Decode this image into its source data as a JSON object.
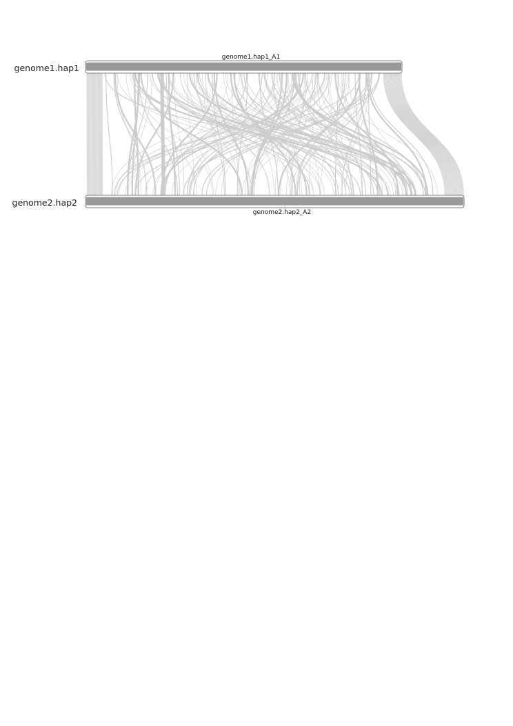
{
  "genomes": [
    {
      "name": "genome1.hap1",
      "chromosome": "genome1.hap1_A1"
    },
    {
      "name": "genome2.hap2",
      "chromosome": "genome2.hap2_A2"
    }
  ],
  "colors": {
    "chromosome_fill": "#999999",
    "chromosome_outline": "#555555",
    "synteny_links": "#cccccc"
  }
}
